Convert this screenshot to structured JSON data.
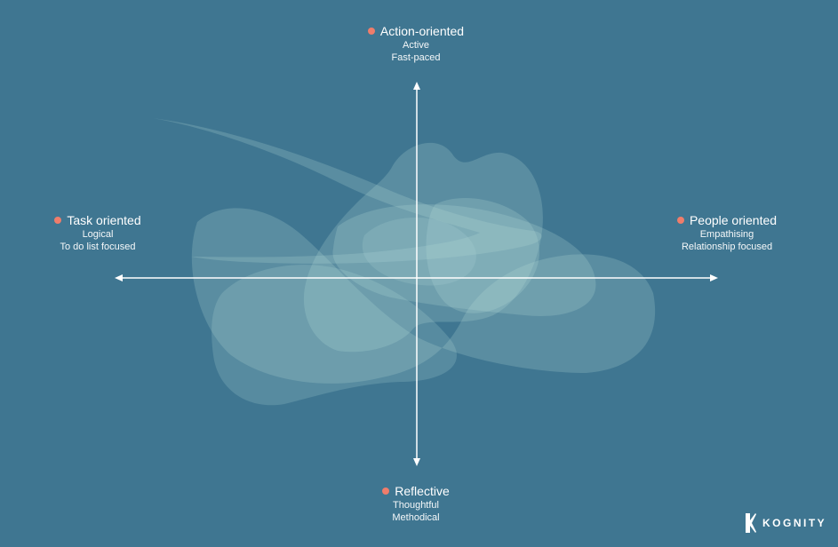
{
  "colors": {
    "background": "#3f7691",
    "blob_fill": "#b9e0dc",
    "axis": "#ffffff",
    "dot": "#ef7d6b"
  },
  "axes": {
    "top": {
      "title": "Action-oriented",
      "lines": [
        "Active",
        "Fast-paced"
      ]
    },
    "left": {
      "title": "Task oriented",
      "lines": [
        "Logical",
        "To do list focused"
      ]
    },
    "right": {
      "title": "People oriented",
      "lines": [
        "Empathising",
        "Relationship focused"
      ]
    },
    "bottom": {
      "title": "Reflective",
      "lines": [
        "Thoughtful",
        "Methodical"
      ]
    }
  },
  "logo": {
    "icon": "kognity-k-icon",
    "wordmark": "KOGNITY"
  }
}
